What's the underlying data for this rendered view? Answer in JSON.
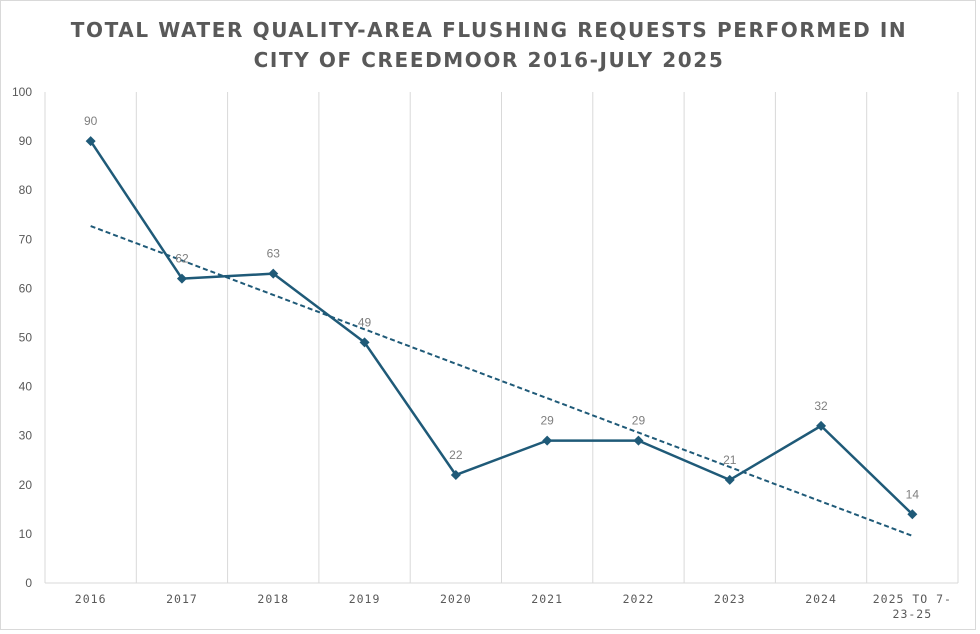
{
  "title_lines": [
    "TOTAL WATER QUALITY-AREA FLUSHING REQUESTS PERFORMED IN",
    "CITY OF CREEDMOOR 2016-JULY 2025"
  ],
  "colors": {
    "series": "#1f5a78",
    "gridline": "#d9d9d9",
    "text": "#595959",
    "label": "#7f7f7f"
  },
  "chart_data": {
    "type": "line",
    "title": "TOTAL WATER QUALITY-AREA FLUSHING REQUESTS PERFORMED IN CITY OF CREEDMOOR 2016-JULY 2025",
    "categories": [
      "2016",
      "2017",
      "2018",
      "2019",
      "2020",
      "2021",
      "2022",
      "2023",
      "2024",
      "2025 TO 7-23-25"
    ],
    "category_lines": [
      [
        "2016"
      ],
      [
        "2017"
      ],
      [
        "2018"
      ],
      [
        "2019"
      ],
      [
        "2020"
      ],
      [
        "2021"
      ],
      [
        "2022"
      ],
      [
        "2023"
      ],
      [
        "2024"
      ],
      [
        "2025 TO 7-",
        "23-25"
      ]
    ],
    "series": [
      {
        "name": "Flushing Requests",
        "values": [
          90,
          62,
          63,
          49,
          22,
          29,
          29,
          21,
          32,
          14
        ],
        "marker": "diamond",
        "data_labels": true
      }
    ],
    "trendline": {
      "type": "linear",
      "style": "dashed",
      "start_value": 72.7,
      "end_value": 9.6
    },
    "ylim": [
      0,
      100
    ],
    "yticks": [
      0,
      10,
      20,
      30,
      40,
      50,
      60,
      70,
      80,
      90,
      100
    ],
    "xlabel": "",
    "ylabel": "",
    "grid": "vertical",
    "legend": "none"
  }
}
